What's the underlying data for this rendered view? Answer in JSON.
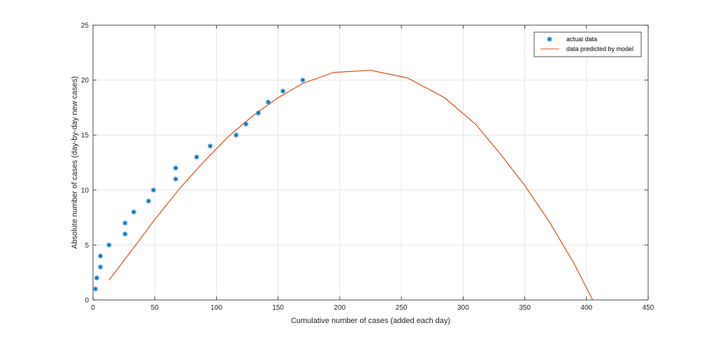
{
  "chart_data": {
    "type": "scatter",
    "xlabel": "Cumulative number of cases (added each day)",
    "ylabel": "Absolute number of cases (day-by-day new cases)",
    "xlim": [
      0,
      450
    ],
    "ylim": [
      0,
      25
    ],
    "xticks": [
      0,
      50,
      100,
      150,
      200,
      250,
      300,
      350,
      400,
      450
    ],
    "yticks": [
      0,
      5,
      10,
      15,
      20,
      25
    ],
    "grid": true,
    "legend_position": "top-right",
    "series": [
      {
        "name": "actual data",
        "kind": "scatter",
        "marker": "*",
        "color": "#0072BD",
        "points": [
          [
            2,
            1
          ],
          [
            3,
            2
          ],
          [
            6,
            3
          ],
          [
            6,
            4
          ],
          [
            13,
            5
          ],
          [
            26,
            6
          ],
          [
            26,
            7
          ],
          [
            33,
            8
          ],
          [
            45,
            9
          ],
          [
            49,
            10
          ],
          [
            67,
            11
          ],
          [
            67,
            12
          ],
          [
            84,
            13
          ],
          [
            95,
            14
          ],
          [
            116,
            15
          ],
          [
            124,
            16
          ],
          [
            134,
            17
          ],
          [
            142,
            18
          ],
          [
            154,
            19
          ],
          [
            170,
            20
          ]
        ]
      },
      {
        "name": "data predicted by model",
        "kind": "line",
        "color": "#D95319",
        "points": [
          [
            13,
            1.8
          ],
          [
            30,
            4.3
          ],
          [
            50,
            7.3
          ],
          [
            70,
            10.1
          ],
          [
            90,
            12.6
          ],
          [
            110,
            14.9
          ],
          [
            130,
            16.8
          ],
          [
            150,
            18.4
          ],
          [
            170,
            19.7
          ],
          [
            195,
            20.7
          ],
          [
            225,
            20.9
          ],
          [
            255,
            20.2
          ],
          [
            285,
            18.4
          ],
          [
            310,
            16.0
          ],
          [
            330,
            13.3
          ],
          [
            350,
            10.4
          ],
          [
            370,
            7.1
          ],
          [
            390,
            3.3
          ],
          [
            405,
            0
          ]
        ]
      }
    ]
  }
}
